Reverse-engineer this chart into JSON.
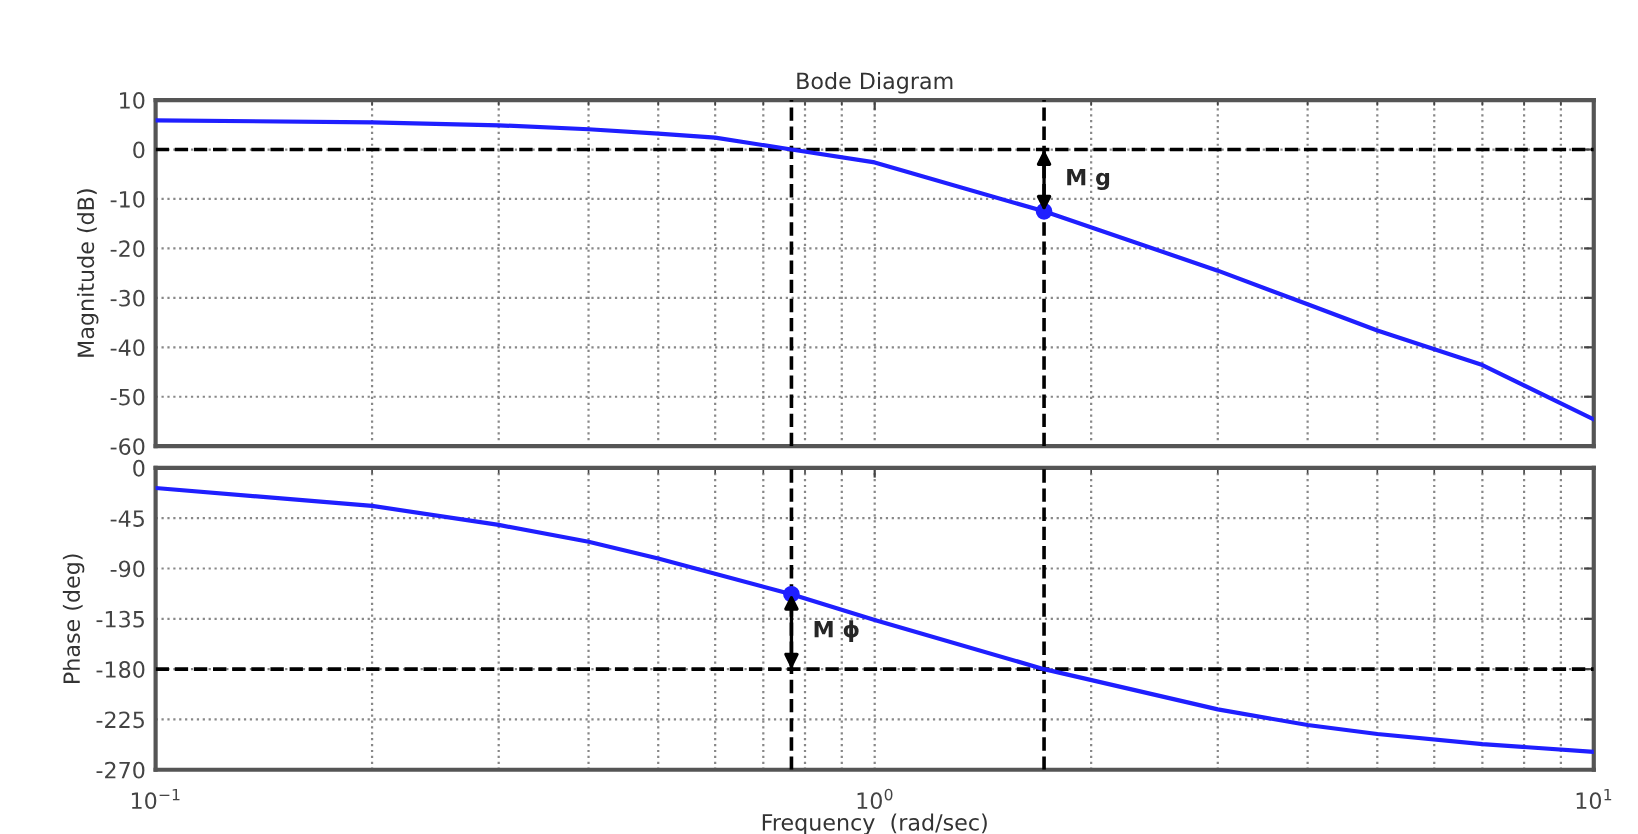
{
  "chart_data": [
    {
      "type": "line",
      "title": "Bode Diagram",
      "ylabel": "Magnitude (dB)",
      "log": "x",
      "grid": true,
      "tick_labels": "y",
      "xlim": [
        0.1,
        10
      ],
      "ylim": [
        -60,
        10
      ],
      "yticks": [
        -60,
        -50,
        -40,
        -30,
        -20,
        -10,
        0,
        10
      ],
      "xticks": [
        {
          "value": 0.1,
          "label": null
        },
        {
          "value": 1,
          "label": null
        },
        {
          "value": 10,
          "label": null
        }
      ],
      "series": [
        {
          "color": "#1f1fff",
          "x": [
            0.1,
            0.2,
            0.3,
            0.4,
            0.5,
            0.6,
            0.766,
            1,
            1.72,
            3,
            4,
            5,
            7,
            10
          ],
          "values": [
            5.9,
            5.5,
            4.9,
            4.1,
            3.2,
            2.4,
            0,
            -2.6,
            -12.5,
            -24.5,
            -31.3,
            -36.6,
            -43.6,
            -54.6
          ]
        },
        {
          "type": "scatter",
          "color": "#1f1fff",
          "marker": "circle",
          "x": [
            1.72
          ],
          "values": [
            -12.5
          ]
        }
      ],
      "ref_lines": [
        {
          "axis": "y",
          "value": 0,
          "color": "#000000",
          "line_style": "dashed"
        },
        {
          "axis": "x",
          "value": 0.766,
          "color": "#000000",
          "line_style": "dashed"
        },
        {
          "axis": "x",
          "value": 1.72,
          "color": "#000000",
          "line_style": "dashed"
        }
      ],
      "annotations": [
        {
          "text": "M g",
          "x": 1.72,
          "y": -6
        }
      ]
    },
    {
      "type": "line",
      "xlabel": "Frequency  (rad/sec)",
      "ylabel": "Phase (deg)",
      "log": "x",
      "grid": true,
      "xlim": [
        0.1,
        10
      ],
      "ylim": [
        -270,
        0
      ],
      "yticks": [
        -270,
        -225,
        -180,
        -135,
        -90,
        -45,
        0
      ],
      "xticks": [
        {
          "value": 0.1,
          "label": "10$^{−1}$"
        },
        {
          "value": 1,
          "label": "10$^{0}$"
        },
        {
          "value": 10,
          "label": "10$^{1}$"
        }
      ],
      "series": [
        {
          "color": "#1f1fff",
          "x": [
            0.1,
            0.2,
            0.3,
            0.4,
            0.5,
            0.766,
            1,
            1.72,
            3,
            4,
            5,
            7,
            10
          ],
          "values": [
            -18,
            -34,
            -51,
            -66,
            -81,
            -113,
            -136,
            -180,
            -216,
            -230,
            -238,
            -247,
            -254
          ]
        },
        {
          "type": "scatter",
          "color": "#1f1fff",
          "marker": "circle",
          "x": [
            0.766
          ],
          "values": [
            -113
          ]
        }
      ],
      "ref_lines": [
        {
          "axis": "y",
          "value": -180,
          "color": "#000000",
          "line_style": "dashed"
        },
        {
          "axis": "x",
          "value": 0.766,
          "color": "#000000",
          "line_style": "dashed"
        },
        {
          "axis": "x",
          "value": 1.72,
          "color": "#000000",
          "line_style": "dashed"
        }
      ],
      "annotations": [
        {
          "text": "M ϕ",
          "x": 0.766,
          "y": -146
        }
      ]
    }
  ]
}
